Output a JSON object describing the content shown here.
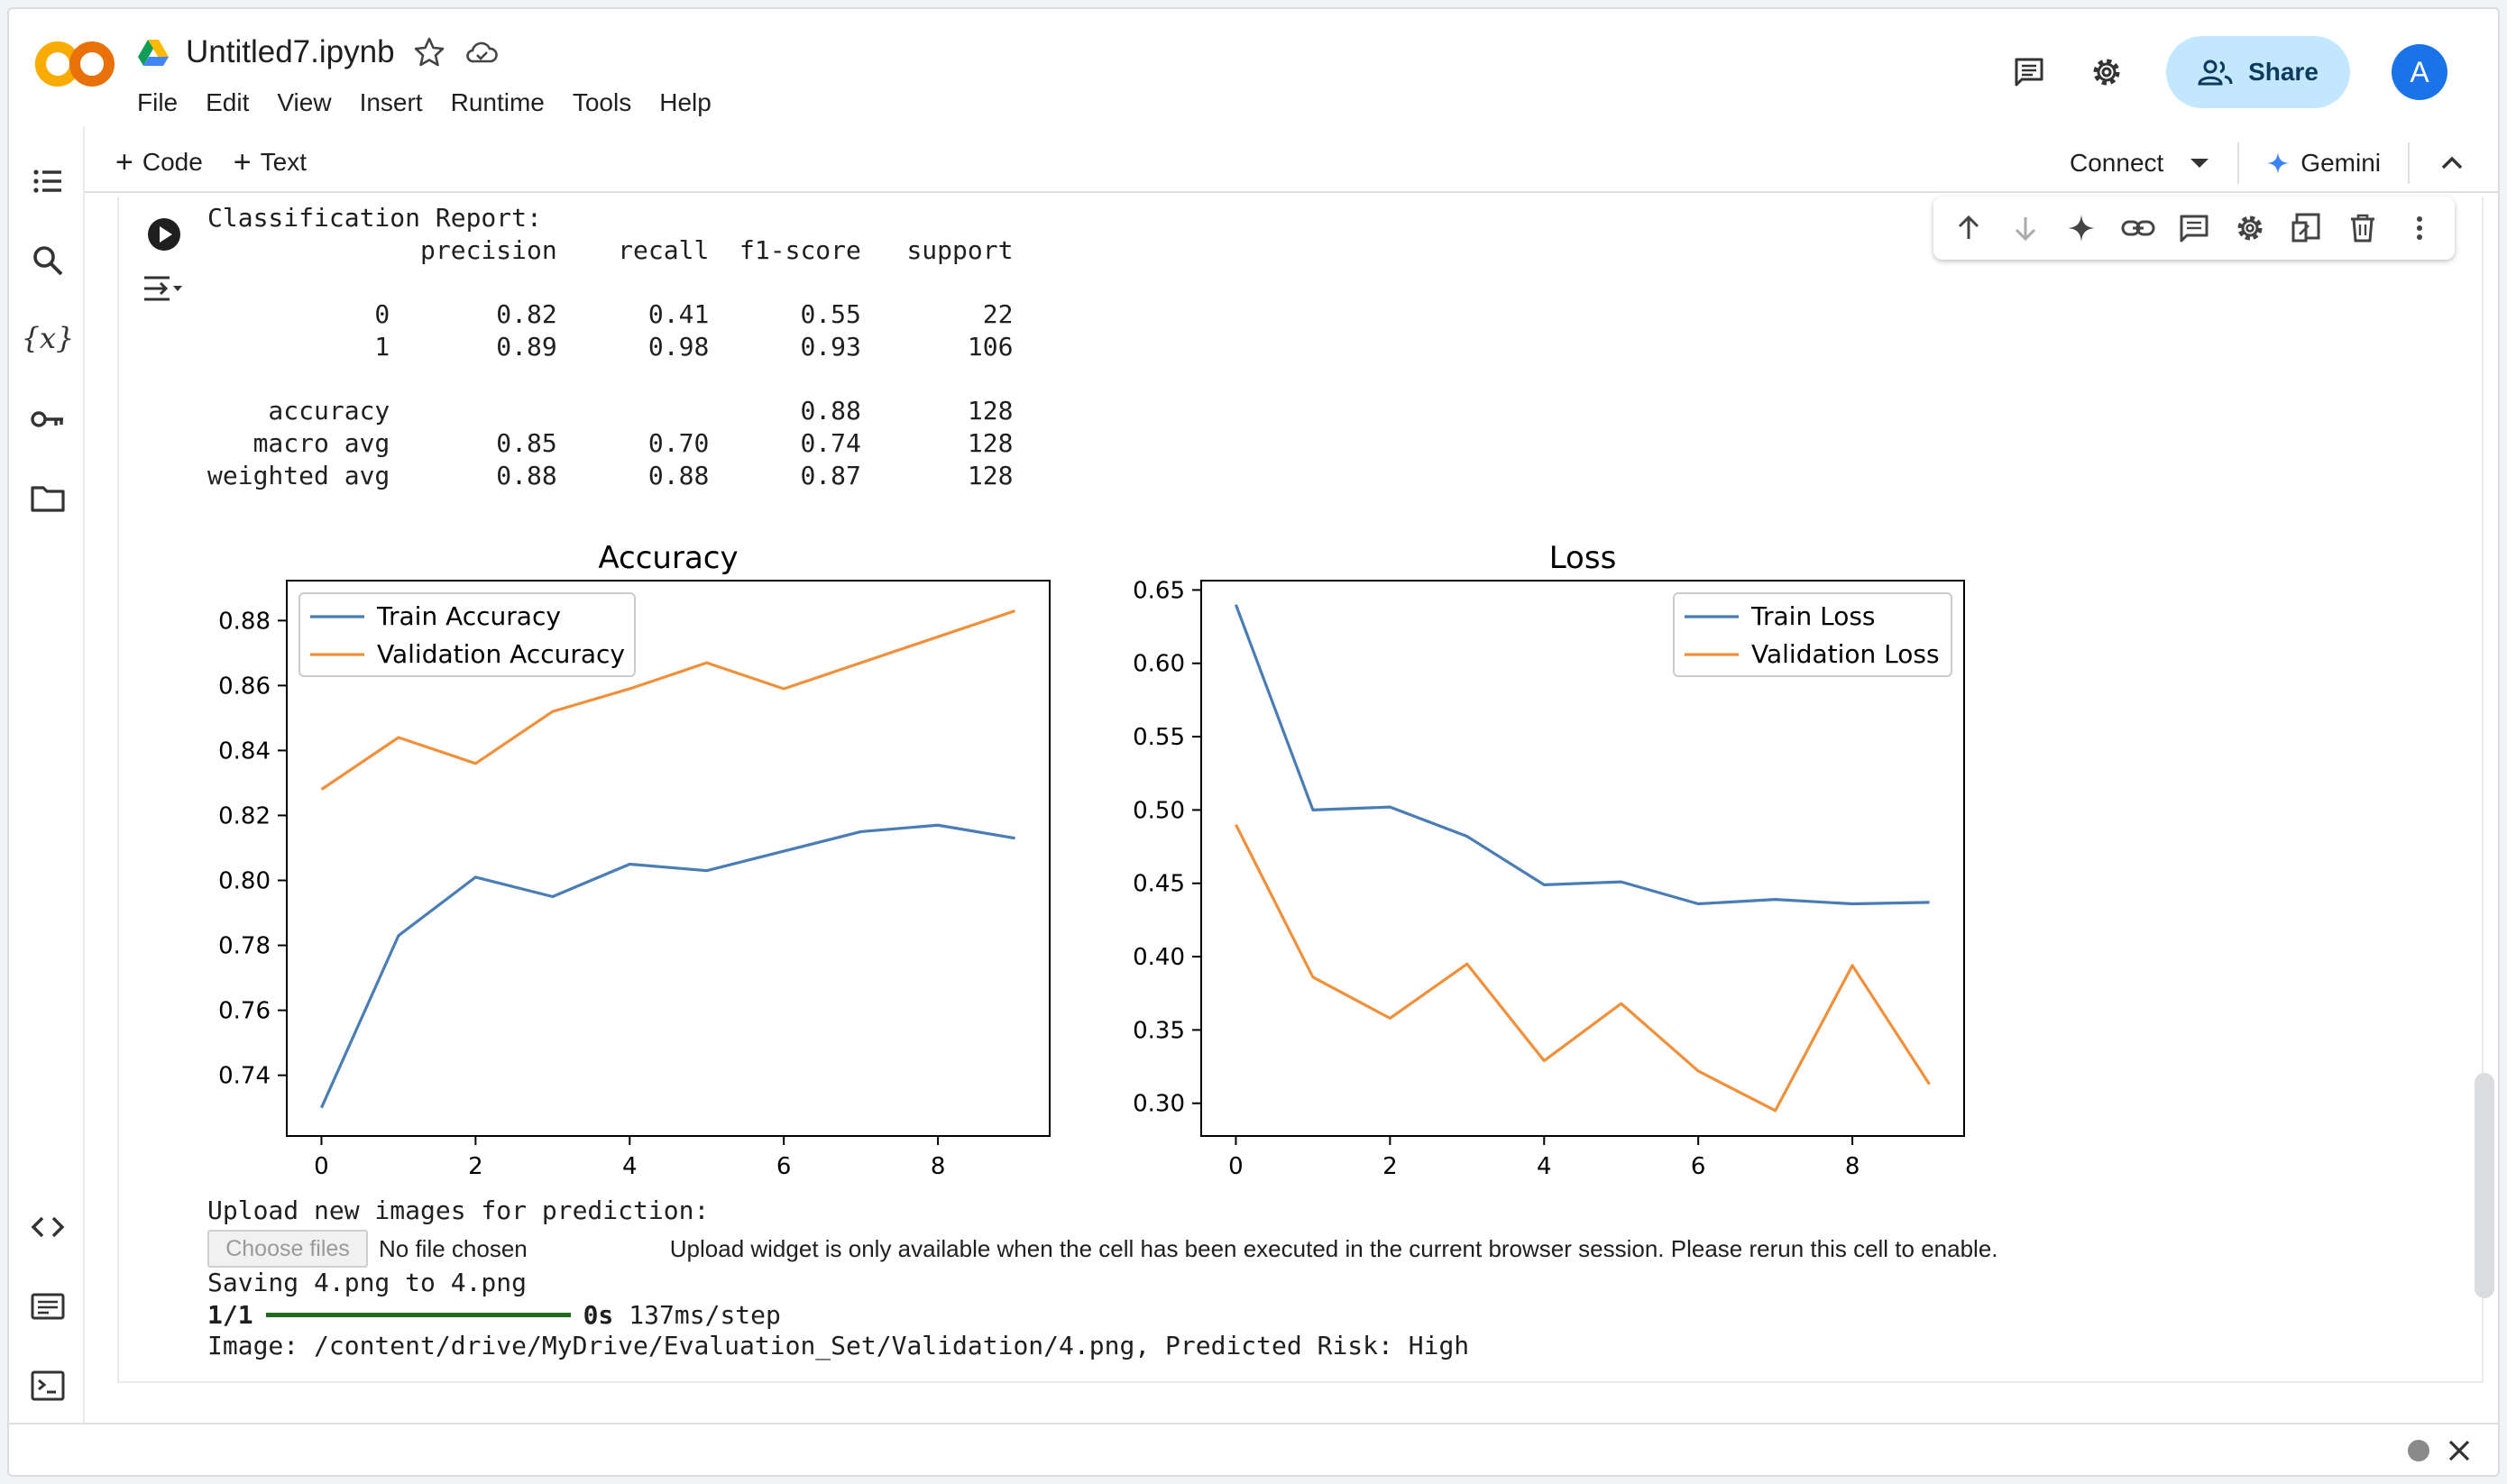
{
  "app": {
    "notebook_title": "Untitled7.ipynb",
    "menu": [
      "File",
      "Edit",
      "View",
      "Insert",
      "Runtime",
      "Tools",
      "Help"
    ],
    "share_label": "Share",
    "avatar_initial": "A",
    "accent_color": "#1a73e8",
    "share_bg": "#c2e7ff"
  },
  "toolbar": {
    "code_label": "Code",
    "text_label": "Text",
    "connect_label": "Connect",
    "gemini_label": "Gemini"
  },
  "output": {
    "report_text": "Classification Report:\n              precision    recall  f1-score   support\n\n           0       0.82      0.41      0.55        22\n           1       0.89      0.98      0.93       106\n\n    accuracy                           0.88       128\n   macro avg       0.85      0.70      0.74       128\nweighted avg       0.88      0.88      0.87       128",
    "upload_label": "Upload new images for prediction:",
    "choose_files": "Choose files",
    "no_file": "No file chosen",
    "upload_note": "Upload widget is only available when the cell has been executed in the current browser session. Please rerun this cell to enable.",
    "saving": "Saving 4.png to 4.png",
    "progress_count": "1/1",
    "progress_time": "0s",
    "progress_step": "137ms/step",
    "image_line": "Image: /content/drive/MyDrive/Evaluation_Set/Validation/4.png, Predicted Risk: High"
  },
  "chart_data": [
    {
      "type": "line",
      "title": "Accuracy",
      "xlabel": "",
      "ylabel": "",
      "x": [
        0,
        1,
        2,
        3,
        4,
        5,
        6,
        7,
        8,
        9
      ],
      "xticks": [
        0,
        2,
        4,
        6,
        8
      ],
      "yticks": [
        0.74,
        0.76,
        0.78,
        0.8,
        0.82,
        0.84,
        0.86,
        0.88
      ],
      "ytick_labels": [
        "0.74",
        "0.76",
        "0.78",
        "0.80",
        "0.82",
        "0.84",
        "0.86",
        "0.88"
      ],
      "xlim": [
        -0.45,
        9.45
      ],
      "ylim": [
        0.7213,
        0.8923
      ],
      "legend": "upper left",
      "series": [
        {
          "name": "Train Accuracy",
          "color": "#4a7db5",
          "values": [
            0.73,
            0.783,
            0.801,
            0.795,
            0.805,
            0.803,
            0.809,
            0.815,
            0.817,
            0.813
          ]
        },
        {
          "name": "Validation Accuracy",
          "color": "#f0903a",
          "values": [
            0.828,
            0.844,
            0.836,
            0.852,
            0.859,
            0.867,
            0.859,
            0.867,
            0.875,
            0.883
          ]
        }
      ]
    },
    {
      "type": "line",
      "title": "Loss",
      "xlabel": "",
      "ylabel": "",
      "x": [
        0,
        1,
        2,
        3,
        4,
        5,
        6,
        7,
        8,
        9
      ],
      "xticks": [
        0,
        2,
        4,
        6,
        8
      ],
      "yticks": [
        0.3,
        0.35,
        0.4,
        0.45,
        0.5,
        0.55,
        0.6,
        0.65
      ],
      "ytick_labels": [
        "0.30",
        "0.35",
        "0.40",
        "0.45",
        "0.50",
        "0.55",
        "0.60",
        "0.65"
      ],
      "xlim": [
        -0.45,
        9.45
      ],
      "ylim": [
        0.2777,
        0.6564
      ],
      "legend": "upper right",
      "series": [
        {
          "name": "Train Loss",
          "color": "#4a7db5",
          "values": [
            0.64,
            0.5,
            0.502,
            0.482,
            0.449,
            0.451,
            0.436,
            0.439,
            0.436,
            0.437
          ]
        },
        {
          "name": "Validation Loss",
          "color": "#f0903a",
          "values": [
            0.49,
            0.386,
            0.358,
            0.395,
            0.329,
            0.368,
            0.322,
            0.295,
            0.394,
            0.313
          ]
        }
      ]
    }
  ]
}
